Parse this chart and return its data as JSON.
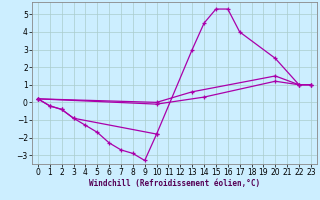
{
  "xlabel": "Windchill (Refroidissement éolien,°C)",
  "bg_color": "#cceeff",
  "line_color": "#aa00aa",
  "grid_color": "#aacccc",
  "xlim": [
    -0.5,
    23.5
  ],
  "ylim": [
    -3.5,
    5.7
  ],
  "xticks": [
    0,
    1,
    2,
    3,
    4,
    5,
    6,
    7,
    8,
    9,
    10,
    11,
    12,
    13,
    14,
    15,
    16,
    17,
    18,
    19,
    20,
    21,
    22,
    23
  ],
  "yticks": [
    -3,
    -2,
    -1,
    0,
    1,
    2,
    3,
    4,
    5
  ],
  "lines": [
    {
      "x": [
        0,
        1,
        2,
        3,
        4,
        5,
        6,
        7,
        8,
        9,
        10
      ],
      "y": [
        0.2,
        -0.2,
        -0.4,
        -0.9,
        -1.3,
        -1.7,
        -2.3,
        -2.7,
        -2.9,
        -3.3,
        -1.8
      ]
    },
    {
      "x": [
        0,
        1,
        2,
        3,
        10,
        13,
        14,
        15,
        16,
        17,
        20,
        22,
        23
      ],
      "y": [
        0.2,
        -0.2,
        -0.4,
        -0.9,
        -1.8,
        3.0,
        4.5,
        5.3,
        5.3,
        4.0,
        2.5,
        1.0,
        1.0
      ]
    },
    {
      "x": [
        0,
        10,
        13,
        20,
        22,
        23
      ],
      "y": [
        0.2,
        0.0,
        0.6,
        1.5,
        1.0,
        1.0
      ]
    },
    {
      "x": [
        0,
        10,
        14,
        20,
        22,
        23
      ],
      "y": [
        0.2,
        -0.1,
        0.3,
        1.2,
        1.0,
        1.0
      ]
    }
  ]
}
